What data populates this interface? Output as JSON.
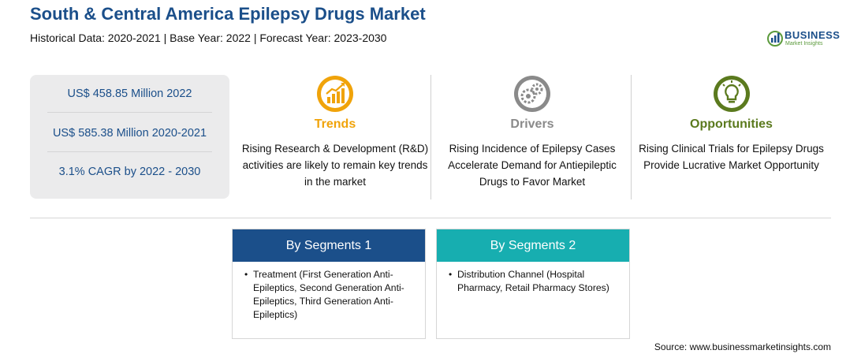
{
  "header": {
    "title": "South & Central America Epilepsy Drugs Market",
    "subtitle": "Historical Data: 2020-2021 | Base Year: 2022 | Forecast Year: 2023-2030"
  },
  "logo": {
    "name": "BUSINESS",
    "tagline": "Market Insights",
    "icon": "bar-chart-globe-icon"
  },
  "stats": [
    "US$ 458.85 Million 2022",
    "US$ 585.38 Million 2020-2021",
    "3.1% CAGR by 2022 - 2030"
  ],
  "columns": {
    "trends": {
      "heading": "Trends",
      "text": "Rising Research & Development (R&D) activities are likely to remain key trends in the market",
      "icon": "trending-up-chart-icon",
      "color": "#f0a30a"
    },
    "drivers": {
      "heading": "Drivers",
      "text": "Rising Incidence of Epilepsy Cases Accelerate Demand for Antiepileptic Drugs to Favor Market",
      "icon": "gears-icon",
      "color": "#8a8a8a"
    },
    "opportunities": {
      "heading": "Opportunities",
      "text": "Rising Clinical Trials for Epilepsy Drugs Provide Lucrative Market Opportunity",
      "icon": "lightbulb-icon",
      "color": "#5b7a1e"
    }
  },
  "segments": [
    {
      "title": "By Segments 1",
      "items": [
        "Treatment (First Generation Anti-Epileptics, Second Generation Anti-Epileptics, Third Generation Anti-Epileptics)"
      ],
      "color": "#1b4f8a"
    },
    {
      "title": "By Segments 2",
      "items": [
        "Distribution Channel (Hospital Pharmacy, Retail Pharmacy Stores)"
      ],
      "color": "#17aeb0"
    }
  ],
  "bullet": "•",
  "source": "Source: www.businessmarketinsights.com"
}
